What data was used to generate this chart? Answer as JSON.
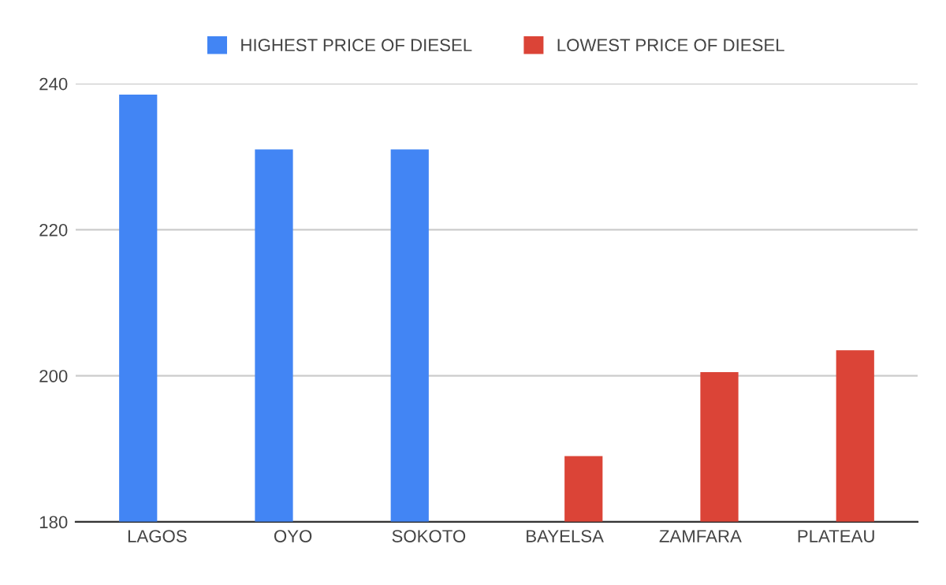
{
  "chart_data": {
    "type": "bar",
    "categories": [
      "LAGOS",
      "OYO",
      "SOKOTO",
      "BAYELSA",
      "ZAMFARA",
      "PLATEAU"
    ],
    "series": [
      {
        "name": "HIGHEST PRICE OF DIESEL",
        "color": "#4285f4",
        "values": [
          238.5,
          231,
          231,
          null,
          null,
          null
        ]
      },
      {
        "name": "LOWEST PRICE OF DIESEL",
        "color": "#db4437",
        "values": [
          null,
          null,
          null,
          189,
          200.5,
          203.5
        ]
      }
    ],
    "ylim": [
      180,
      240
    ],
    "yticks": [
      180,
      200,
      220,
      240
    ],
    "grid": "y",
    "legend": "top"
  }
}
